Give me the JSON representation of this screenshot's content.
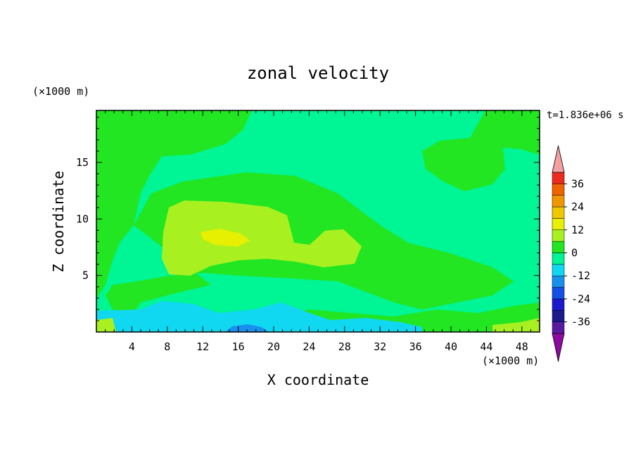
{
  "chart_data": {
    "type": "heatmap",
    "title": "zonal velocity",
    "xlabel": "X coordinate",
    "ylabel": "Z coordinate",
    "x_unit": "(×1000 m)",
    "y_unit": "(×1000 m)",
    "time_label": "t=1.836e+06 s",
    "xlim": [
      0,
      50
    ],
    "ylim": [
      0,
      19.6
    ],
    "x_ticks": [
      4,
      8,
      12,
      16,
      20,
      24,
      28,
      32,
      36,
      40,
      44,
      48
    ],
    "y_ticks": [
      5,
      10,
      15
    ],
    "colorbar": {
      "levels": [
        -42,
        -36,
        -30,
        -24,
        -18,
        -12,
        -6,
        0,
        6,
        12,
        18,
        24,
        30,
        36,
        42
      ],
      "tick_values": [
        -36,
        -24,
        -12,
        0,
        12,
        24,
        36
      ],
      "tick_labels": [
        "-36",
        "-24",
        "-12",
        "0",
        "12",
        "24",
        "36"
      ],
      "colors": [
        "#5a1aa0",
        "#1a1a8c",
        "#1a1acc",
        "#1450e6",
        "#1890ee",
        "#10d8f0",
        "#00f594",
        "#22e622",
        "#a8f020",
        "#e6f000",
        "#f0c800",
        "#f09600",
        "#f06400",
        "#ee2a1e"
      ],
      "under_color": "#8c0aa0",
      "over_color": "#f4a0a0"
    },
    "regions": [
      {
        "value": -3,
        "label": "background near-zero (mint)"
      },
      {
        "value": 3,
        "label": "weak positive upper-left band"
      },
      {
        "value": 3,
        "label": "weak positive upper-right blob"
      },
      {
        "value": 9,
        "label": "positive core around x=10-28, z=7-11"
      },
      {
        "value": 13,
        "label": "positive maximum near x=16, z=8.5"
      },
      {
        "value": -9,
        "label": "negative layer near surface x=4-32, z=0-3"
      },
      {
        "value": -15,
        "label": "strongest negative near x=18, z=0.3"
      }
    ]
  }
}
